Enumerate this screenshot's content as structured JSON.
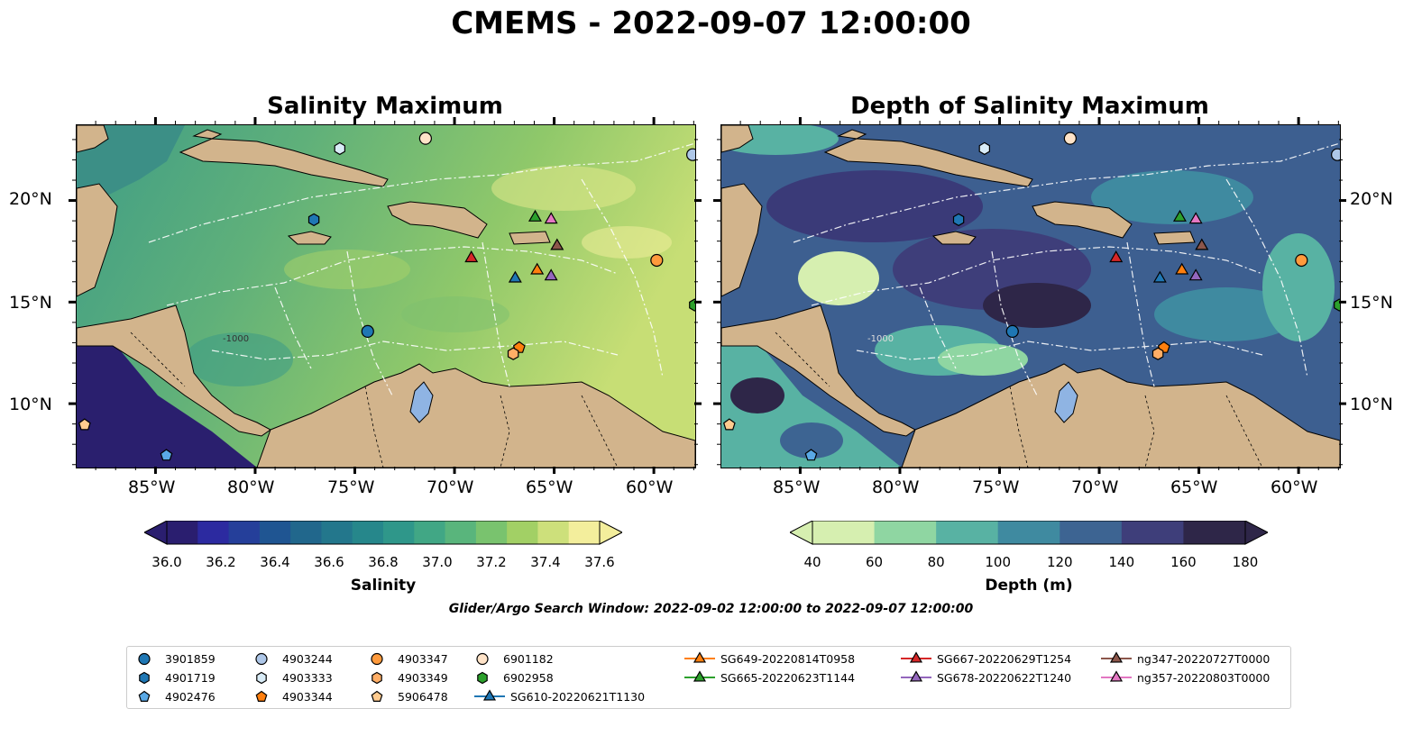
{
  "suptitle": "CMEMS - 2022-09-07 12:00:00",
  "left_map": {
    "title": "Salinity Maximum",
    "colorbar": {
      "label": "Salinity",
      "ticks": [
        "36.0",
        "36.2",
        "36.4",
        "36.6",
        "36.8",
        "37.0",
        "37.2",
        "37.4",
        "37.6"
      ],
      "colors": [
        "#2a1e6f",
        "#2c2aa0",
        "#253f9a",
        "#1f5592",
        "#21678c",
        "#23778c",
        "#26878b",
        "#2f978a",
        "#41a785",
        "#59b57c",
        "#79c36e",
        "#a2d065",
        "#cde07b",
        "#f3ee9c"
      ]
    }
  },
  "right_map": {
    "title": "Depth of Salinity Maximum",
    "colorbar": {
      "label": "Depth (m)",
      "ticks": [
        "40",
        "60",
        "80",
        "100",
        "120",
        "140",
        "160",
        "180"
      ],
      "colors": [
        "#d6efb0",
        "#8fd6a2",
        "#58b2a3",
        "#3f8aa0",
        "#3d6492",
        "#3e3e7a",
        "#2e2648"
      ]
    }
  },
  "lon_labels": [
    "85°W",
    "80°W",
    "75°W",
    "70°W",
    "65°W",
    "60°W"
  ],
  "lat_labels": [
    "20°N",
    "15°N",
    "10°N"
  ],
  "contour_label": "-1000",
  "search_window": "Glider/Argo Search Window: 2022-09-02 12:00:00 to 2022-09-07 12:00:00",
  "legend": [
    {
      "label": "3901859",
      "marker": "circle",
      "color": "#1f77b4"
    },
    {
      "label": "4901719",
      "marker": "hexagon",
      "color": "#1f77b4"
    },
    {
      "label": "4902476",
      "marker": "pentagon",
      "color": "#5aa9e6"
    },
    {
      "label": "4903244",
      "marker": "circle",
      "color": "#aec7e8"
    },
    {
      "label": "4903333",
      "marker": "hexagon",
      "color": "#d9ecf7"
    },
    {
      "label": "4903344",
      "marker": "pentagon",
      "color": "#ff7f0e"
    },
    {
      "label": "4903347",
      "marker": "circle",
      "color": "#ff9a3c"
    },
    {
      "label": "4903349",
      "marker": "hexagon",
      "color": "#ffae66"
    },
    {
      "label": "5906478",
      "marker": "pentagon",
      "color": "#ffcb8f"
    },
    {
      "label": "6901182",
      "marker": "circle",
      "color": "#ffe3c8"
    },
    {
      "label": "6902958",
      "marker": "hexagon",
      "color": "#2ca02c"
    },
    {
      "label": "SG610-20220621T1130",
      "marker": "triangle",
      "color": "#1f77b4"
    },
    {
      "label": "SG649-20220814T0958",
      "marker": "triangle",
      "color": "#ff7f0e"
    },
    {
      "label": "SG665-20220623T1144",
      "marker": "triangle",
      "color": "#2ca02c"
    },
    {
      "label": "SG667-20220629T1254",
      "marker": "triangle",
      "color": "#d62728"
    },
    {
      "label": "SG678-20220622T1240",
      "marker": "triangle",
      "color": "#9467bd"
    },
    {
      "label": "ng347-20220727T0000",
      "marker": "triangle",
      "color": "#8c564b"
    },
    {
      "label": "ng357-20220803T0000",
      "marker": "triangle",
      "color": "#e377c2"
    }
  ],
  "colors": {
    "land": "#d2b48c",
    "lake": "#8fb4e3"
  }
}
